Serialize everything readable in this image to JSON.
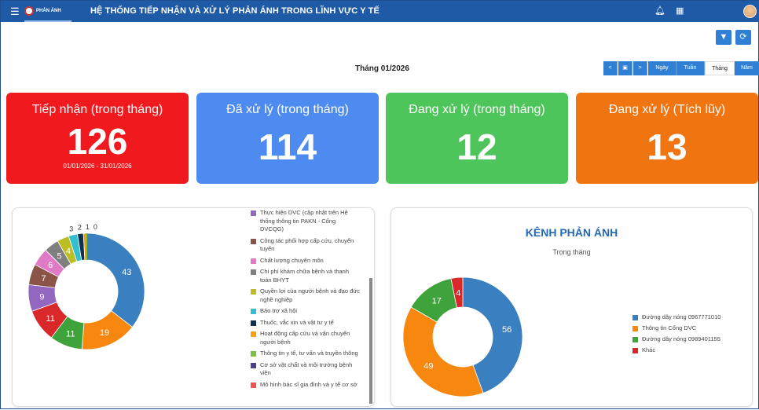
{
  "header": {
    "brand": "PHẢN ÁNH",
    "title": "HỆ THỐNG TIẾP NHẬN VÀ XỬ LÝ PHẢN ÁNH TRONG LĨNH VỰC Y TẾ",
    "icons": [
      "menu-icon",
      "bell-icon",
      "apps-grid-icon",
      "avatar"
    ]
  },
  "toolbar": {
    "filter_icon": "filter-icon",
    "refresh_icon": "refresh-icon"
  },
  "period": {
    "label": "Tháng 01/2026",
    "buttons": [
      "Ngày",
      "Tuần",
      "Tháng",
      "Năm"
    ],
    "active": "Tháng"
  },
  "cards": [
    {
      "title": "Tiếp nhận (trong tháng)",
      "value": "126",
      "sub": "01/01/2026 - 31/01/2026",
      "color": "#f0191d"
    },
    {
      "title": "Đã xử lý (trong tháng)",
      "value": "114",
      "sub": "",
      "color": "#4e8bf1"
    },
    {
      "title": "Đang xử lý (trong tháng)",
      "value": "12",
      "sub": "",
      "color": "#4dc55a"
    },
    {
      "title": "Đang xử lý (Tích lũy)",
      "value": "13",
      "sub": "",
      "color": "#f07410"
    }
  ],
  "chart_data": [
    {
      "type": "pie",
      "donut": true,
      "values": [
        43,
        19,
        11,
        11,
        9,
        7,
        6,
        5,
        4,
        3,
        2,
        1,
        0
      ],
      "colors": [
        "#3a7fc0",
        "#f7870f",
        "#3ea33a",
        "#d8282a",
        "#9267bf",
        "#8b5449",
        "#e07ac6",
        "#7f7f7f",
        "#bcbd22",
        "#33bfcf",
        "#0f3050",
        "#f5a20d",
        "#7ac143"
      ],
      "legend_visible": [
        {
          "label": "Thực hiện DVC (cập nhật trên Hệ thống thông tin PAKN - Cổng DVCQG)",
          "color": "#9267bf"
        },
        {
          "label": "Công tác phối hợp cấp cứu, chuyển tuyến",
          "color": "#8b5449"
        },
        {
          "label": "Chất lượng chuyên môn",
          "color": "#e07ac6"
        },
        {
          "label": "Chi phí khám chữa bệnh và thanh toán BHYT",
          "color": "#7f7f7f"
        },
        {
          "label": "Quyền lợi của người bệnh và đạo đức nghề nghiệp",
          "color": "#bcbd22"
        },
        {
          "label": "Bảo trợ xã hội",
          "color": "#33bfcf"
        },
        {
          "label": "Thuốc, vắc xin và vật tư y tế",
          "color": "#0f3050"
        },
        {
          "label": "Hoạt động cấp cứu và vận chuyển người bệnh",
          "color": "#f5a20d"
        },
        {
          "label": "Thông tin y tế, tư vấn và truyền thông",
          "color": "#7ac143"
        },
        {
          "label": "Cơ sở vật chất và môi trường bệnh viện",
          "color": "#4b3f8c"
        },
        {
          "label": "Mô hình bác sĩ gia đình và y tế cơ sở",
          "color": "#ef5350"
        }
      ]
    },
    {
      "type": "pie",
      "donut": true,
      "title": "KÊNH PHẢN ÁNH",
      "subtitle": "Trong tháng",
      "categories": [
        "Đường dây nóng 0967771010",
        "Thông tin Cổng DVC",
        "Đường dây nóng 0989401155",
        "Khác"
      ],
      "values": [
        56,
        49,
        17,
        4
      ],
      "colors": [
        "#3a7fc0",
        "#f7870f",
        "#3ea33a",
        "#d8282a"
      ],
      "legend_placement": "right"
    }
  ]
}
